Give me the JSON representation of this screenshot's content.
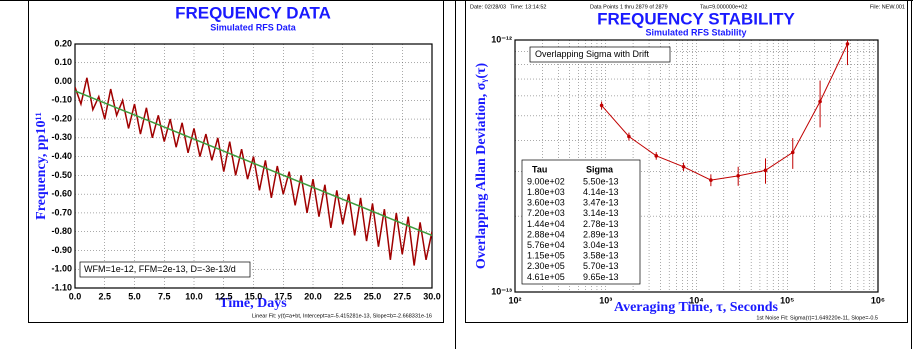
{
  "chart_data": [
    {
      "type": "line",
      "title": "FREQUENCY DATA",
      "subtitle": "Simulated RFS Data",
      "xlabel": "Time, Days",
      "ylabel": "Frequency, pp10¹¹",
      "annotation": "WFM=1e-12, FFM=2e-13, D=-3e-13/d",
      "footer": "Linear Fit: y(t)=a+bt, Intercept=a=-5.415281e-13, Slope=b=-2.668331e-16",
      "series": [
        {
          "color": "#a00000",
          "x": [
            0,
            0.5,
            1,
            1.5,
            2,
            2.5,
            3,
            3.5,
            4,
            4.5,
            5,
            5.5,
            6,
            6.5,
            7,
            7.5,
            8,
            8.5,
            9,
            9.5,
            10,
            10.5,
            11,
            11.5,
            12,
            12.5,
            13,
            13.5,
            14,
            14.5,
            15,
            15.5,
            16,
            16.5,
            17,
            17.5,
            18,
            18.5,
            19,
            19.5,
            20,
            20.5,
            21,
            21.5,
            22,
            22.5,
            23,
            23.5,
            24,
            24.5,
            25,
            25.5,
            26,
            26.5,
            27,
            27.5,
            28,
            28.5,
            29,
            29.5,
            30
          ],
          "values": [
            -0.03,
            -0.12,
            0.02,
            -0.15,
            -0.08,
            -0.2,
            -0.04,
            -0.18,
            -0.1,
            -0.25,
            -0.12,
            -0.28,
            -0.14,
            -0.3,
            -0.18,
            -0.32,
            -0.2,
            -0.35,
            -0.22,
            -0.38,
            -0.25,
            -0.4,
            -0.28,
            -0.42,
            -0.3,
            -0.48,
            -0.32,
            -0.5,
            -0.36,
            -0.52,
            -0.4,
            -0.58,
            -0.42,
            -0.62,
            -0.45,
            -0.6,
            -0.48,
            -0.66,
            -0.5,
            -0.7,
            -0.52,
            -0.72,
            -0.55,
            -0.78,
            -0.58,
            -0.76,
            -0.6,
            -0.82,
            -0.62,
            -0.85,
            -0.65,
            -0.88,
            -0.68,
            -0.95,
            -0.7,
            -0.92,
            -0.72,
            -0.98,
            -0.75,
            -0.95,
            -0.8
          ]
        },
        {
          "color": "#3c9c3c",
          "x": [
            0,
            30
          ],
          "values": [
            -0.05,
            -0.82
          ]
        }
      ],
      "xlim": [
        0,
        30
      ],
      "xticks": [
        {
          "value": 0,
          "label": "0.0"
        },
        2.5,
        {
          "value": 5,
          "label": "5.0"
        },
        7.5,
        {
          "value": 10,
          "label": "10.0"
        },
        12.5,
        {
          "value": 15,
          "label": "15.0"
        },
        17.5,
        {
          "value": 20,
          "label": "20.0"
        },
        22.5,
        {
          "value": 25,
          "label": "25.0"
        },
        27.5,
        {
          "value": 30,
          "label": "30.0"
        }
      ],
      "ylim": [
        -1.1,
        0.2
      ],
      "yticks": [
        {
          "value": 0.2,
          "label": "0.20"
        },
        {
          "value": 0.1,
          "label": "0.10"
        },
        {
          "value": 0,
          "label": "0.00"
        },
        {
          "value": -0.1,
          "label": "-0.10"
        },
        {
          "value": -0.2,
          "label": "-0.20"
        },
        {
          "value": -0.3,
          "label": "-0.30"
        },
        {
          "value": -0.4,
          "label": "-0.40"
        },
        {
          "value": -0.5,
          "label": "-0.50"
        },
        {
          "value": -0.6,
          "label": "-0.60"
        },
        {
          "value": -0.7,
          "label": "-0.70"
        },
        {
          "value": -0.8,
          "label": "-0.80"
        },
        {
          "value": -0.9,
          "label": "-0.90"
        },
        {
          "value": -1.0,
          "label": "-1.00"
        },
        {
          "value": -1.1,
          "label": "-1.10"
        }
      ],
      "grid": true
    },
    {
      "type": "line",
      "log_x": true,
      "log_y": true,
      "markers": true,
      "title": "FREQUENCY STABILITY",
      "subtitle": "Simulated RFS Stability",
      "header": [
        "Date: 02/28/03",
        "Time: 13:14:52",
        "Data Points 1 thru 2879 of 2879",
        "Tau=9.000000e+02",
        "File: NEW.001"
      ],
      "legend_text": "Overlapping Sigma with Drift",
      "xlabel": "Averaging Time, τ, Seconds",
      "ylabel": "Overlapping Allan Deviation, σᵧ(τ)",
      "footer": "1st Noise Fit: Sigma(τ)=1.649220e-11, Slope=-0.5",
      "table_headers": [
        "Tau",
        "Sigma"
      ],
      "series": [
        {
          "color": "#c00000",
          "x": [
            900,
            1800,
            3600,
            7200,
            14400,
            28800,
            57600,
            115000,
            230000,
            461000
          ],
          "x_labels": [
            "9.00e+02",
            "1.80e+03",
            "3.60e+03",
            "7.20e+03",
            "1.44e+04",
            "2.88e+04",
            "5.76e+04",
            "1.15e+05",
            "2.30e+05",
            "4.61e+05"
          ],
          "values": [
            5.5e-13,
            4.14e-13,
            3.47e-13,
            3.14e-13,
            2.78e-13,
            2.89e-13,
            3.04e-13,
            3.58e-13,
            5.7e-13,
            9.65e-13
          ],
          "value_labels": [
            "5.50e-13",
            "4.14e-13",
            "3.47e-13",
            "3.14e-13",
            "2.78e-13",
            "2.89e-13",
            "3.04e-13",
            "3.58e-13",
            "5.70e-13",
            "9.65e-13"
          ],
          "errors": [
            2e-14,
            1.5e-14,
            1.2e-14,
            1.2e-14,
            1.5e-14,
            2.5e-14,
            3.5e-14,
            5e-14,
            1.2e-13,
            1.7e-13
          ]
        }
      ],
      "xlim": [
        100,
        1000000
      ],
      "xticks": [
        {
          "value": 100,
          "label": "10²"
        },
        {
          "value": 1000,
          "label": "10³"
        },
        {
          "value": 10000,
          "label": "10⁴"
        },
        {
          "value": 100000,
          "label": "10⁵"
        },
        {
          "value": 1000000,
          "label": "10⁶"
        }
      ],
      "minor_xticks": [
        200,
        300,
        400,
        500,
        600,
        700,
        800,
        900,
        2000,
        3000,
        4000,
        5000,
        6000,
        7000,
        8000,
        9000,
        20000,
        30000,
        40000,
        50000,
        60000,
        70000,
        80000,
        90000,
        200000,
        300000,
        400000,
        500000,
        600000,
        700000,
        800000,
        900000
      ],
      "ylim": [
        1e-13,
        1e-12
      ],
      "yticks": [
        {
          "value": 1e-13,
          "label": "10⁻¹³"
        },
        {
          "value": 1e-12,
          "label": "10⁻¹²"
        }
      ],
      "minor_yticks": [
        2e-13,
        3e-13,
        4e-13,
        5e-13,
        6e-13,
        7e-13,
        8e-13,
        9e-13
      ],
      "grid": true
    }
  ]
}
